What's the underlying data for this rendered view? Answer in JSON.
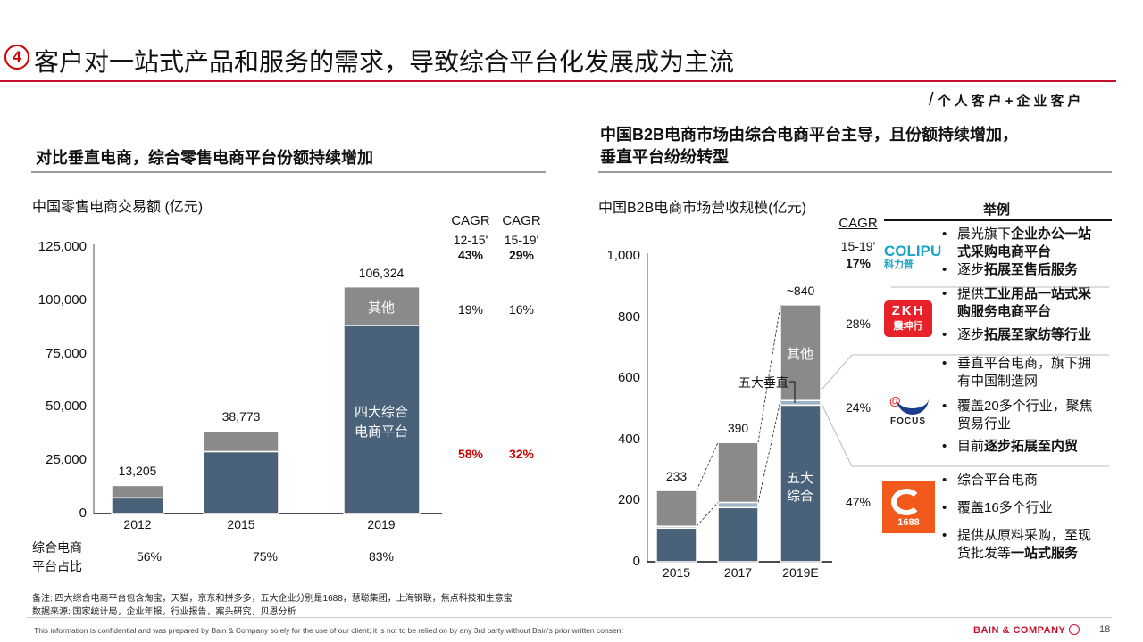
{
  "slide": {
    "badge": "4",
    "title": "客户对一站式产品和服务的需求，导致综合平台化发展成为主流",
    "audience": "个人客户+企业客户",
    "left_subtitle": "对比垂直电商，综合零售电商平台份额持续增加",
    "right_subtitle_1": "中国B2B电商市场由综合电商平台主导，且份额持续增加，",
    "right_subtitle_2": "垂直平台纷纷转型",
    "note": "备注: 四大综合电商平台包含淘宝，天猫，京东和拼多多，五大企业分别是1688，慧聪集团，上海钢联，焦点科技和生意宝",
    "source": "数据来源: 国家统计局，企业年报，行业报告，案头研究，贝恩分析",
    "confidential": "This information is confidential and was prepared by Bain & Company solely for the use of our client; it is not to be relied on by any 3rd party without Bain's prior written consent",
    "brand": "BAIN & COMPANY",
    "page_number": "18"
  },
  "left_cagr": {
    "headers": [
      "CAGR",
      "CAGR"
    ],
    "periods": [
      "12-15'",
      "15-19'"
    ],
    "total": [
      "43%",
      "29%"
    ],
    "other": [
      "19%",
      "16%"
    ],
    "integrated": [
      "58%",
      "32%"
    ]
  },
  "left_share": {
    "label_1": "综合电商",
    "label_2": "平台占比",
    "values": [
      "56%",
      "75%",
      "83%"
    ]
  },
  "right_table": {
    "cagr_header": "CAGR",
    "period": "15-19'",
    "header": "举例",
    "rows": [
      {
        "cagr": "17%",
        "logo": "COLIPU",
        "logo_sub": "科力普",
        "bullets": [
          [
            {
              "t": "晨光旗下",
              "b": false
            },
            {
              "t": "企业办公一站式采购电商平台",
              "b": true
            }
          ],
          [
            {
              "t": "逐步",
              "b": false
            },
            {
              "t": "拓展至售后服务",
              "b": true
            }
          ]
        ]
      },
      {
        "cagr": "28%",
        "logo": "ZKH",
        "logo_sub": "震坤行",
        "bullets": [
          [
            {
              "t": "提供",
              "b": false
            },
            {
              "t": "工业用品一站式采购服务电商平台",
              "b": true
            }
          ],
          [
            {
              "t": "逐步",
              "b": false
            },
            {
              "t": "拓展至家纺等行业",
              "b": true
            }
          ]
        ]
      },
      {
        "cagr": "24%",
        "logo": "FOCUS",
        "logo_sub": "@",
        "bullets": [
          [
            {
              "t": "垂直平台电商，旗下拥有中国制造网",
              "b": false
            }
          ],
          [
            {
              "t": "覆盖20多个行业，聚焦贸易行业",
              "b": false
            }
          ],
          [
            {
              "t": "目前",
              "b": false
            },
            {
              "t": "逐步拓展至内贸",
              "b": true
            }
          ]
        ]
      },
      {
        "cagr": "47%",
        "logo": "1688",
        "logo_sub": "",
        "bullets": [
          [
            {
              "t": "综合平台电商",
              "b": false
            }
          ],
          [
            {
              "t": "覆盖16多个行业",
              "b": false
            }
          ],
          [
            {
              "t": "提供从原料采购，至现货批发等",
              "b": false
            },
            {
              "t": "一站式服务",
              "b": true
            }
          ]
        ]
      }
    ]
  },
  "colors": {
    "integrated": "#4a6279",
    "other": "#8a8a8a",
    "vertical": "#9fb3c8",
    "accent": "#c8102e"
  },
  "chart_data": [
    {
      "type": "bar",
      "stacked": true,
      "title": "中国零售电商交易额 (亿元)",
      "categories": [
        "2012",
        "2015",
        "2019"
      ],
      "totals": [
        "13,205",
        "38,773",
        "106,324"
      ],
      "series": [
        {
          "name": "四大综合电商平台",
          "values": [
            7395,
            29080,
            88249
          ]
        },
        {
          "name": "其他",
          "values": [
            5810,
            9693,
            18075
          ]
        }
      ],
      "yticks": [
        "0",
        "25,000",
        "50,000",
        "75,000",
        "100,000",
        "125,000"
      ],
      "ylim": [
        0,
        125000
      ],
      "grid": false
    },
    {
      "type": "bar",
      "stacked": true,
      "title": "中国B2B电商市场营收规模(亿元)",
      "categories": [
        "2015",
        "2017",
        "2019E"
      ],
      "totals": [
        "233",
        "390",
        "~840"
      ],
      "series": [
        {
          "name": "五大综合",
          "values": [
            110,
            177,
            512
          ]
        },
        {
          "name": "五大垂直",
          "values": [
            6,
            17,
            15
          ]
        },
        {
          "name": "其他",
          "values": [
            117,
            196,
            313
          ]
        }
      ],
      "yticks": [
        "0",
        "200",
        "400",
        "600",
        "800",
        "1,000"
      ],
      "ylim": [
        0,
        1000
      ],
      "grid": false
    }
  ]
}
